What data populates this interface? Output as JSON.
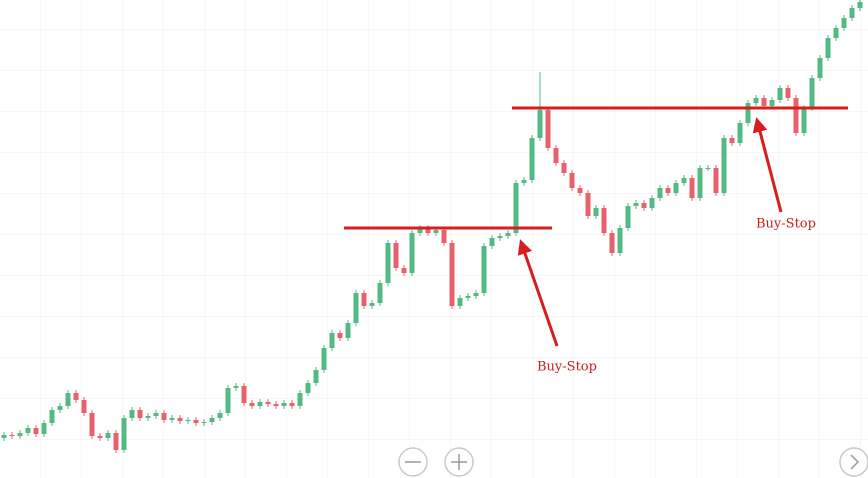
{
  "chart_data": {
    "type": "candlestick",
    "up_color": "#53b985",
    "down_color": "#e8606a",
    "level_color": "#d71d1d",
    "ylim": [
      0,
      478
    ],
    "series": {
      "open": [
        40,
        43,
        42,
        45,
        50,
        44,
        55,
        68,
        72,
        85,
        78,
        65,
        42,
        40,
        45,
        28,
        60,
        68,
        60,
        62,
        65,
        58,
        60,
        57,
        58,
        55,
        56,
        60,
        65,
        90,
        92,
        75,
        72,
        76,
        74,
        72,
        75,
        72,
        85,
        95,
        108,
        130,
        145,
        140,
        155,
        185,
        172,
        175,
        195,
        235,
        210,
        205,
        245,
        250,
        245,
        248,
        235,
        172,
        180,
        182,
        185,
        232,
        240,
        242,
        245,
        295,
        298,
        340,
        368,
        330,
        315,
        305,
        290,
        285,
        262,
        270,
        245,
        225,
        250,
        272,
        275,
        270,
        280,
        290,
        285,
        295,
        300,
        280,
        310,
        310,
        285,
        340,
        335,
        355,
        375,
        380,
        372,
        378,
        390,
        380,
        345,
        370,
        400,
        420,
        440,
        450,
        460,
        470
      ],
      "high": [
        46,
        46,
        48,
        53,
        53,
        58,
        71,
        75,
        88,
        88,
        81,
        68,
        45,
        48,
        48,
        63,
        71,
        71,
        65,
        68,
        68,
        63,
        63,
        61,
        61,
        59,
        63,
        68,
        93,
        95,
        95,
        78,
        79,
        79,
        77,
        78,
        78,
        88,
        98,
        111,
        133,
        148,
        148,
        158,
        188,
        188,
        178,
        198,
        238,
        238,
        213,
        248,
        253,
        253,
        251,
        251,
        238,
        183,
        185,
        188,
        235,
        243,
        245,
        248,
        298,
        301,
        343,
        406,
        371,
        333,
        318,
        308,
        293,
        288,
        273,
        273,
        248,
        253,
        275,
        278,
        278,
        283,
        293,
        293,
        298,
        303,
        303,
        313,
        313,
        313,
        343,
        343,
        358,
        378,
        383,
        383,
        381,
        393,
        393,
        383,
        373,
        403,
        423,
        443,
        453,
        463,
        473,
        478
      ],
      "low": [
        37,
        39,
        39,
        42,
        41,
        41,
        52,
        65,
        69,
        75,
        62,
        39,
        37,
        37,
        25,
        25,
        57,
        57,
        57,
        59,
        55,
        55,
        54,
        54,
        52,
        52,
        53,
        57,
        62,
        87,
        72,
        69,
        69,
        71,
        69,
        69,
        69,
        69,
        82,
        92,
        105,
        127,
        137,
        137,
        152,
        169,
        169,
        172,
        192,
        207,
        202,
        202,
        242,
        242,
        242,
        232,
        169,
        169,
        177,
        179,
        182,
        229,
        237,
        239,
        242,
        292,
        295,
        337,
        327,
        312,
        302,
        287,
        282,
        259,
        259,
        242,
        222,
        222,
        247,
        269,
        267,
        267,
        277,
        282,
        282,
        292,
        277,
        277,
        307,
        282,
        282,
        332,
        332,
        352,
        372,
        369,
        369,
        375,
        377,
        342,
        342,
        367,
        397,
        417,
        437,
        447,
        457,
        467
      ],
      "close": [
        43,
        42,
        45,
        50,
        44,
        55,
        68,
        72,
        85,
        78,
        65,
        42,
        40,
        45,
        28,
        60,
        68,
        60,
        62,
        65,
        58,
        60,
        57,
        58,
        55,
        56,
        60,
        65,
        90,
        92,
        75,
        72,
        76,
        74,
        72,
        75,
        72,
        85,
        95,
        108,
        130,
        145,
        140,
        155,
        185,
        172,
        175,
        195,
        235,
        210,
        205,
        245,
        250,
        245,
        248,
        235,
        172,
        180,
        182,
        185,
        232,
        240,
        242,
        245,
        295,
        298,
        340,
        368,
        330,
        315,
        305,
        290,
        285,
        262,
        270,
        245,
        225,
        250,
        272,
        275,
        270,
        280,
        290,
        285,
        295,
        300,
        280,
        310,
        310,
        285,
        340,
        335,
        355,
        375,
        380,
        372,
        378,
        390,
        380,
        345,
        370,
        400,
        420,
        440,
        450,
        460,
        470,
        476
      ]
    },
    "levels": [
      {
        "value": 250,
        "from": 43,
        "to": 68
      },
      {
        "value": 370,
        "from": 64,
        "to": 105
      }
    ],
    "annotations": [
      {
        "text": "Buy-Stop"
      },
      {
        "text": "Buy-Stop"
      }
    ]
  }
}
